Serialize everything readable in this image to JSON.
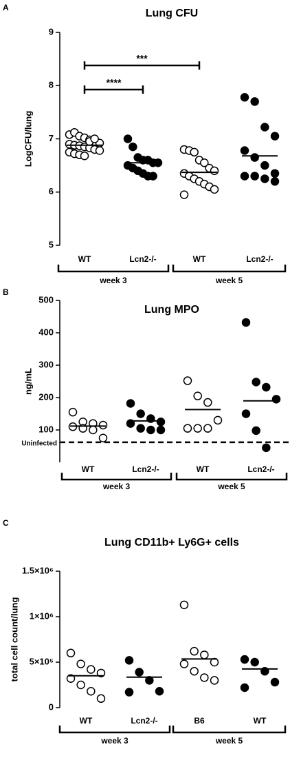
{
  "chart_data": [
    {
      "type": "scatter",
      "panel": "A",
      "title": "Lung CFU",
      "y_label": "LogCFU/lung",
      "categories": [
        "WT",
        "Lcn2-/-",
        "WT",
        "Lcn2-/-"
      ],
      "marker_fill": [
        "#ffffff",
        "#000000",
        "#ffffff",
        "#000000"
      ],
      "values": [
        [
          7.08,
          7.12,
          7.05,
          7.02,
          6.98,
          6.95,
          6.92,
          6.9,
          6.88,
          6.87,
          6.85,
          6.83,
          6.8,
          6.78,
          6.75,
          6.72,
          6.7,
          6.68,
          6.95,
          7.0
        ],
        [
          7.0,
          6.85,
          6.65,
          6.6,
          6.6,
          6.55,
          6.55,
          6.5,
          6.45,
          6.4,
          6.35,
          6.3,
          6.3
        ],
        [
          6.8,
          6.78,
          6.75,
          6.6,
          6.55,
          6.45,
          6.4,
          6.35,
          6.3,
          6.25,
          6.2,
          6.15,
          6.1,
          6.05,
          5.95
        ],
        [
          7.78,
          7.7,
          7.22,
          7.05,
          6.78,
          6.65,
          6.5,
          6.35,
          6.3,
          6.3,
          6.25,
          6.2
        ]
      ],
      "means": [
        6.88,
        6.55,
        6.37,
        6.68
      ],
      "groups": [
        {
          "label": "week 3",
          "span": [
            0,
            1
          ]
        },
        {
          "label": "week 5",
          "span": [
            2,
            3
          ]
        }
      ],
      "annotations": [
        {
          "text": "****",
          "between": [
            0,
            1
          ]
        },
        {
          "text": "***",
          "between": [
            0,
            2
          ]
        }
      ],
      "ylim": [
        5,
        9
      ],
      "yticks": [
        5,
        6,
        7,
        8,
        9
      ]
    },
    {
      "type": "scatter",
      "panel": "B",
      "title": "Lung  MPO",
      "y_label": "ng/mL",
      "categories": [
        "WT",
        "Lcn2-/-",
        "WT",
        "Lcn2-/-"
      ],
      "marker_fill": [
        "#ffffff",
        "#000000",
        "#ffffff",
        "#000000"
      ],
      "values": [
        [
          155,
          125,
          120,
          115,
          110,
          105,
          100,
          75
        ],
        [
          182,
          150,
          135,
          125,
          120,
          105,
          100,
          100
        ],
        [
          252,
          205,
          185,
          130,
          105,
          105,
          105
        ],
        [
          432,
          248,
          232,
          195,
          150,
          98,
          45
        ]
      ],
      "means": [
        112,
        128,
        163,
        190
      ],
      "groups": [
        {
          "label": "week 3",
          "span": [
            0,
            1
          ]
        },
        {
          "label": "week 5",
          "span": [
            2,
            3
          ]
        }
      ],
      "reference_line": {
        "label": "Uninfected",
        "value": 62
      },
      "ylim": [
        0,
        500
      ],
      "yticks": [
        100,
        200,
        300,
        400,
        500
      ]
    },
    {
      "type": "scatter",
      "panel": "C",
      "title": "Lung CD11b+ Ly6G+ cells",
      "y_label": "total cell count/lung",
      "categories": [
        "WT",
        "Lcn2-/-",
        "B6",
        "WT"
      ],
      "marker_fill": [
        "#ffffff",
        "#000000",
        "#ffffff",
        "#000000"
      ],
      "values": [
        [
          600000,
          480000,
          420000,
          380000,
          320000,
          250000,
          180000,
          100000
        ],
        [
          520000,
          390000,
          300000,
          180000,
          170000
        ],
        [
          1130000,
          620000,
          580000,
          500000,
          480000,
          400000,
          330000,
          300000
        ],
        [
          530000,
          500000,
          400000,
          280000,
          220000
        ]
      ],
      "means": [
        350000,
        335000,
        535000,
        425000
      ],
      "groups": [
        {
          "label": "week 3",
          "span": [
            0,
            1
          ]
        },
        {
          "label": "week 5",
          "span": [
            2,
            3
          ]
        }
      ],
      "ylim": [
        0,
        1500000
      ],
      "yticks": [
        0,
        {
          "value": 500000,
          "label": "5×10⁵"
        },
        {
          "value": 1000000,
          "label": "1×10⁶"
        },
        {
          "value": 1500000,
          "label": "1.5×10⁶"
        }
      ]
    }
  ]
}
